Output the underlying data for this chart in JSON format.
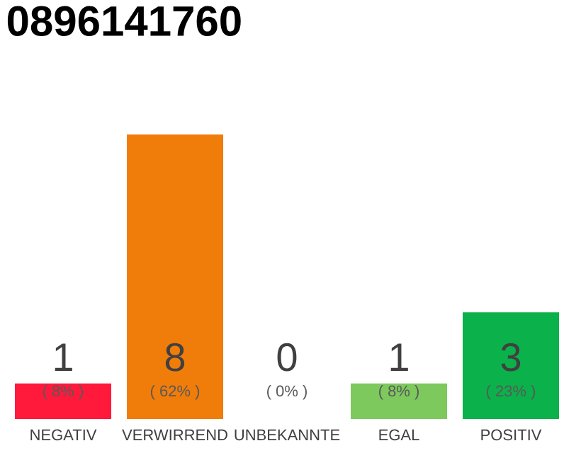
{
  "chart_data": {
    "type": "bar",
    "title": "0896141760",
    "categories": [
      "NEGATIV",
      "VERWIRREND",
      "UNBEKANNTE",
      "EGAL",
      "POSITIV"
    ],
    "values": [
      1,
      8,
      0,
      1,
      3
    ],
    "colors": [
      "#ff1a3c",
      "#f07c0a",
      "#b0b0b0",
      "#7dc95e",
      "#0bb14a"
    ],
    "ylim": [
      0,
      8
    ],
    "data_labels": true,
    "tick_labels": "x",
    "annotations": [
      "( 8% )",
      "( 62% )",
      "( 0% )",
      "( 8% )",
      "( 23% )"
    ]
  }
}
